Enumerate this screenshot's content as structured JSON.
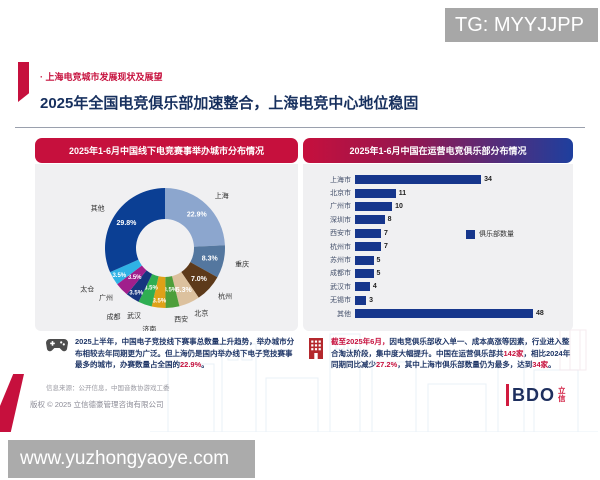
{
  "colors": {
    "red": "#c6103d",
    "navy": "#1e3566",
    "bar": "#16368c"
  },
  "watermarks": {
    "tg": "TG: MYYJJPP",
    "site": "www.yuzhongyaoye.com"
  },
  "header": {
    "eyebrow": "· 上海电竞城市发展现状及展望",
    "title": "2025年全国电竞俱乐部加速整合，上海电竞中心地位稳固"
  },
  "left_panel": {
    "title": "2025年1-6月中国线下电竞赛事举办城市分布情况",
    "note_segments": [
      {
        "t": "2025上半年，中国电子竞技线下赛事总数量上升趋势，举办城市分布相较去年同期更为广泛。但上海仍是国内举办线下电子竞技赛事最多的城市，办赛数量占全国的",
        "c": "navy"
      },
      {
        "t": "22.9%",
        "c": "red"
      },
      {
        "t": "。",
        "c": "navy"
      }
    ],
    "source": "信息来源：公开信息，中国音数协游戏工委"
  },
  "right_panel": {
    "title": "2025年1-6月中国在运营电竞俱乐部分布情况",
    "legend": "俱乐部数量",
    "note_segments": [
      {
        "t": "截至2025年6月，",
        "c": "red"
      },
      {
        "t": "因电竞俱乐部收入单一、成本高涨等因素，行业进入整合淘汰阶段，集中度大幅提升。中国在运营俱乐部共",
        "c": "navy"
      },
      {
        "t": "142家",
        "c": "red"
      },
      {
        "t": "，相比2024年同期同比减少",
        "c": "navy"
      },
      {
        "t": "27.2%",
        "c": "red"
      },
      {
        "t": "，其中上海市俱乐部数量仍为最多，达到",
        "c": "navy"
      },
      {
        "t": "34家",
        "c": "red"
      },
      {
        "t": "。",
        "c": "navy"
      }
    ]
  },
  "footer": {
    "copyright": "版权 © 2025 立信德豪管理咨询有限公司",
    "logo_text": "BDO",
    "logo_cn": "立信"
  },
  "chart_data": [
    {
      "type": "pie",
      "donut": true,
      "title": "2025年1-6月中国线下电竞赛事举办城市分布情况",
      "categories": [
        "上海",
        "重庆",
        "杭州",
        "北京",
        "西安",
        "济南",
        "武汉",
        "成都",
        "广州",
        "太仓",
        "其他"
      ],
      "values": [
        22.9,
        8.3,
        7.0,
        5.3,
        3.5,
        3.5,
        3.5,
        3.5,
        3.5,
        3.5,
        29.8
      ],
      "colors": [
        "#8ca6ce",
        "#54779f",
        "#5d3a1a",
        "#dcc19e",
        "#4d9e3a",
        "#dfa118",
        "#2fae52",
        "#16357f",
        "#a01f8c",
        "#2fb2e5",
        "#0b3f94"
      ],
      "unit": "%",
      "legend_position": "none"
    },
    {
      "type": "bar",
      "orientation": "horizontal",
      "title": "2025年1-6月中国在运营电竞俱乐部分布情况",
      "categories": [
        "上海市",
        "北京市",
        "广州市",
        "深圳市",
        "西安市",
        "杭州市",
        "苏州市",
        "成都市",
        "武汉市",
        "无锡市",
        "其他"
      ],
      "values": [
        34,
        11,
        10,
        8,
        7,
        7,
        5,
        5,
        4,
        3,
        48
      ],
      "series_name": "俱乐部数量",
      "bar_color": "#16368c",
      "xlim": [
        0,
        48
      ],
      "grid": false,
      "legend_position": "right-center"
    }
  ]
}
